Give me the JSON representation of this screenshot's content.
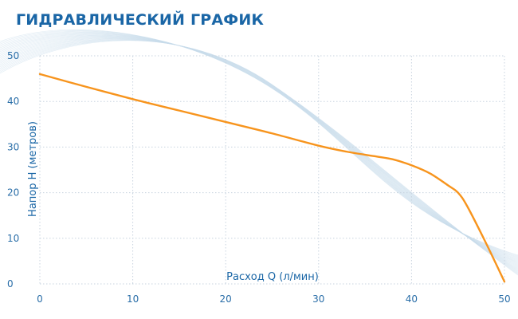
{
  "header": {
    "title": "ГИДРАВЛИЧЕСКИЙ ГРАФИК"
  },
  "chart_data": {
    "type": "line",
    "xlabel": "Расход Q (л/мин)",
    "ylabel": "Напор H (метров)",
    "xlim": [
      0,
      50
    ],
    "ylim": [
      0,
      50
    ],
    "x_ticks": [
      0,
      10,
      20,
      30,
      40,
      50
    ],
    "y_ticks": [
      0,
      10,
      20,
      30,
      40,
      50
    ],
    "grid": true,
    "series": [
      {
        "color": "#f7941d",
        "x": [
          0,
          5,
          10,
          15,
          20,
          25,
          30,
          33,
          36,
          38,
          40,
          42,
          44,
          45,
          46,
          48,
          50
        ],
        "y": [
          46,
          43.2,
          40.5,
          38,
          35.5,
          33,
          30.3,
          29,
          28,
          27.3,
          26,
          24.2,
          21.5,
          20,
          17,
          9,
          0.5
        ]
      }
    ],
    "colors": {
      "title": "#1a66a6",
      "ticks": "#2a6ea8",
      "grid": "#c8d3df",
      "curve": "#f7941d"
    }
  }
}
